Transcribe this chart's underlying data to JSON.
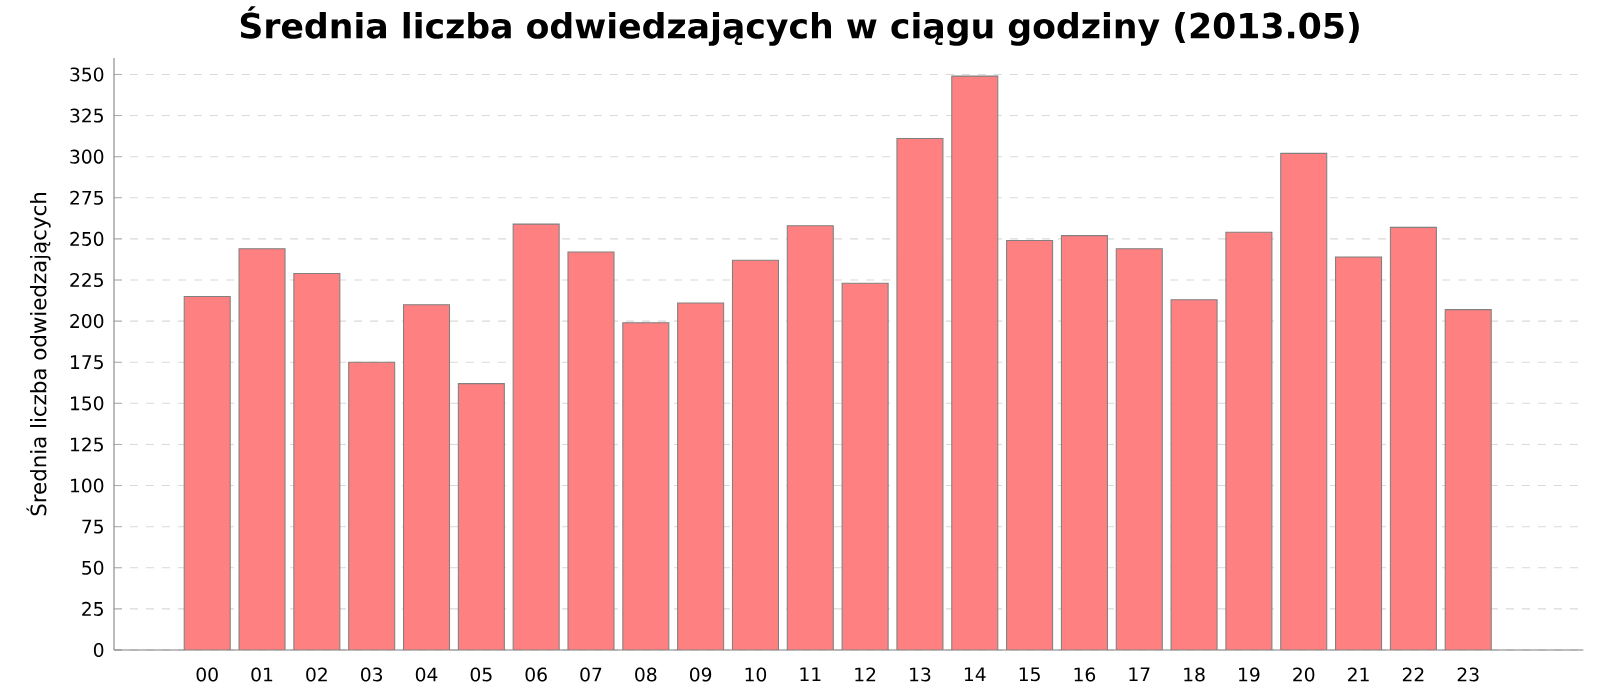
{
  "chart_data": {
    "type": "bar",
    "title": "Średnia liczba odwiedzających w ciągu godziny (2013.05)",
    "ylabel": "Średnia liczba odwiedzających",
    "categories": [
      "00",
      "01",
      "02",
      "03",
      "04",
      "05",
      "06",
      "07",
      "08",
      "09",
      "10",
      "11",
      "12",
      "13",
      "14",
      "15",
      "16",
      "17",
      "18",
      "19",
      "20",
      "21",
      "22",
      "23"
    ],
    "values": [
      215,
      244,
      229,
      175,
      210,
      162,
      259,
      242,
      199,
      211,
      237,
      258,
      223,
      311,
      349,
      249,
      252,
      244,
      213,
      254,
      302,
      239,
      257,
      207
    ],
    "color": "#ff8080",
    "ylim": [
      0,
      360
    ],
    "yticks": [
      0,
      25,
      50,
      75,
      100,
      125,
      150,
      175,
      200,
      225,
      250,
      275,
      300,
      325,
      350
    ],
    "grid": "y"
  }
}
